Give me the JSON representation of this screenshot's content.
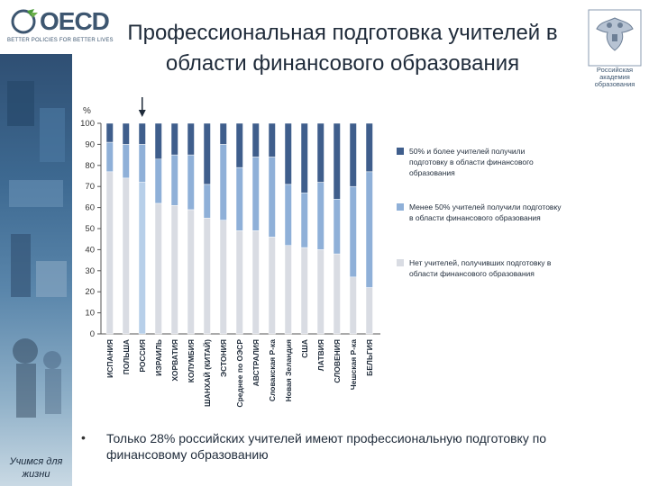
{
  "header": {
    "logo_text": "OECD",
    "logo_tagline": "BETTER POLICIES FOR BETTER LIVES",
    "title_line1": "Профессиональная подготовка учителей в",
    "title_line2": "области финансового образования",
    "emblem_text_line1": "Российская",
    "emblem_text_line2": "академия",
    "emblem_text_line3": "образования"
  },
  "sidebar": {
    "caption_line1": "Учимся для",
    "caption_line2": "жизни"
  },
  "footer": {
    "bullet": "•",
    "caption": "Только 28% российских учителей  имеют профессиональную подготовку по финансовому образованию"
  },
  "colors": {
    "series_high": "#3f5e8c",
    "series_low": "#8fb0d8",
    "series_none": "#d9dce3",
    "highlight_russia": "#b7cfe9",
    "axis": "#555555"
  },
  "chart_data": {
    "type": "bar",
    "stacked": true,
    "ylabel": "%",
    "ylim": [
      0,
      100
    ],
    "yticks": [
      0,
      10,
      20,
      30,
      40,
      50,
      60,
      70,
      80,
      90,
      100
    ],
    "categories": [
      "ИСПАНИЯ",
      "ПОЛЬША",
      "РОССИЯ",
      "ИЗРАИЛЬ",
      "ХОРВАТИЯ",
      "КОЛУМБИЯ",
      "ШАНХАЙ (КИТАЙ)",
      "ЭСТОНИЯ",
      "Среднее по ОЭСР",
      "АВСТРАЛИЯ",
      "Словакская Р-ка",
      "Новая Зеландия",
      "США",
      "ЛАТВИЯ",
      "СЛОВЕНИЯ",
      "Чешская Р-ка",
      "БЕЛЬГИЯ"
    ],
    "highlight_category": "РОССИЯ",
    "series": [
      {
        "name": "Нет учителей, получивших подготовку в области финансового образования",
        "values": [
          77,
          74,
          72,
          62,
          61,
          59,
          55,
          54,
          49,
          49,
          46,
          42,
          41,
          40,
          38,
          27,
          22
        ]
      },
      {
        "name": "Менее 50% учителей получили подготовку в области финансового образования",
        "values": [
          14,
          16,
          18,
          21,
          24,
          26,
          16,
          36,
          30,
          35,
          38,
          29,
          26,
          32,
          26,
          43,
          55
        ]
      },
      {
        "name": "50% и более учителей получили подготовку в области финансового образования",
        "values": [
          9,
          10,
          10,
          17,
          15,
          15,
          29,
          10,
          21,
          16,
          16,
          29,
          33,
          28,
          36,
          30,
          23
        ]
      }
    ],
    "legend_order": [
      2,
      1,
      0
    ],
    "legend_position": "right"
  }
}
